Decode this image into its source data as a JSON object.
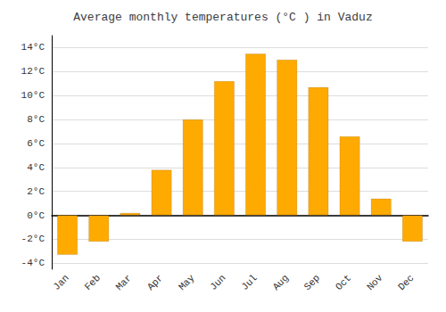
{
  "chart_data": {
    "type": "bar",
    "title": "Average monthly temperatures (°C ) in Vaduz",
    "categories": [
      "Jan",
      "Feb",
      "Mar",
      "Apr",
      "May",
      "Jun",
      "Jul",
      "Aug",
      "Sep",
      "Oct",
      "Nov",
      "Dec"
    ],
    "values": [
      -3.3,
      -2.2,
      0.2,
      3.8,
      8.0,
      11.2,
      13.5,
      13.0,
      10.7,
      6.6,
      1.4,
      -2.2
    ],
    "color": "#FFAA00",
    "ylim": [
      -4.5,
      15
    ],
    "yticks": [
      {
        "value": -4,
        "label": "-4°C"
      },
      {
        "value": -2,
        "label": "-2°C"
      },
      {
        "value": 0,
        "label": "0°C"
      },
      {
        "value": 2,
        "label": "2°C"
      },
      {
        "value": 4,
        "label": "4°C"
      },
      {
        "value": 6,
        "label": "6°C"
      },
      {
        "value": 8,
        "label": "8°C"
      },
      {
        "value": 10,
        "label": "10°C"
      },
      {
        "value": 12,
        "label": "12°C"
      },
      {
        "value": 14,
        "label": "14°C"
      }
    ],
    "grid": true
  }
}
